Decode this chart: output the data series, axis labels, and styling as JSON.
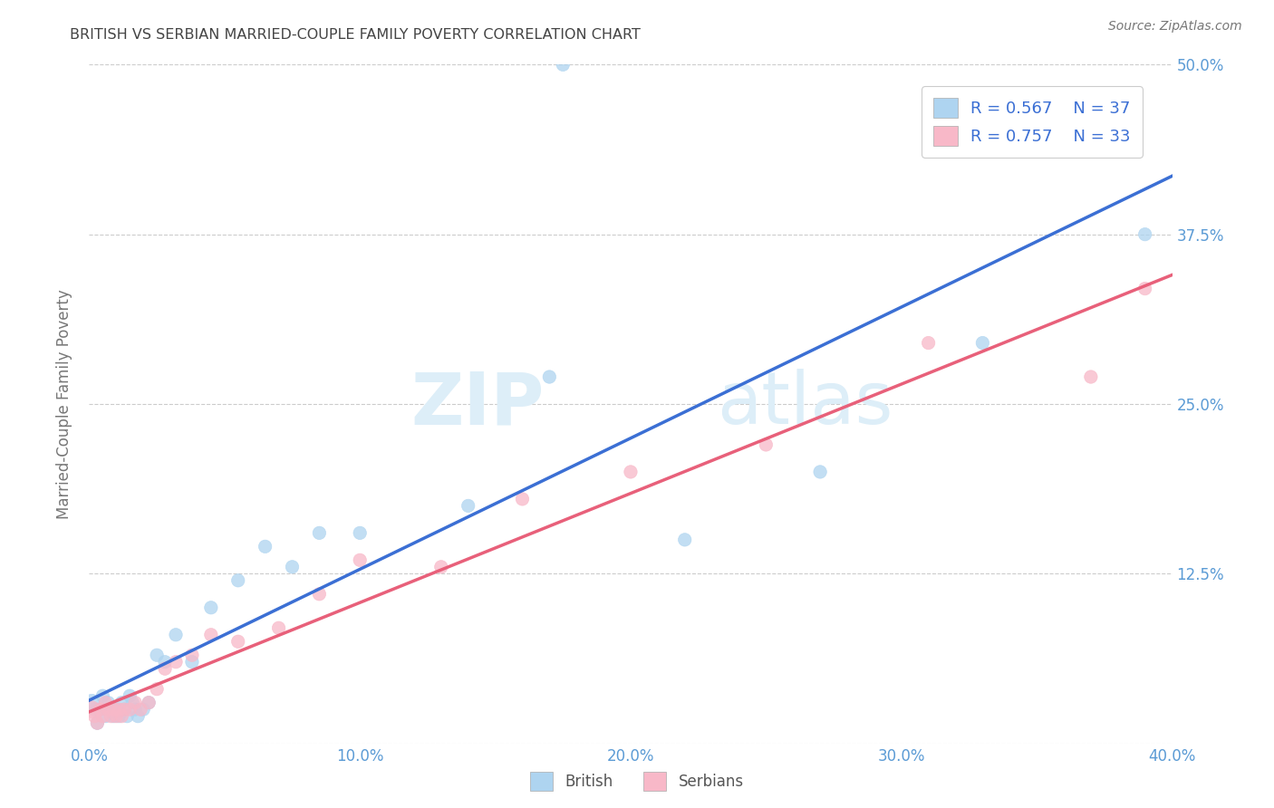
{
  "title": "BRITISH VS SERBIAN MARRIED-COUPLE FAMILY POVERTY CORRELATION CHART",
  "source": "Source: ZipAtlas.com",
  "ylabel": "Married-Couple Family Poverty",
  "xlim": [
    0.0,
    0.4
  ],
  "ylim": [
    0.0,
    0.5
  ],
  "xticks": [
    0.0,
    0.1,
    0.2,
    0.3,
    0.4
  ],
  "xtick_labels": [
    "0.0%",
    "10.0%",
    "20.0%",
    "30.0%",
    "40.0%"
  ],
  "yticks": [
    0.0,
    0.125,
    0.25,
    0.375,
    0.5
  ],
  "ytick_labels": [
    "",
    "12.5%",
    "25.0%",
    "37.5%",
    "50.0%"
  ],
  "british_R": 0.567,
  "british_N": 37,
  "serbian_R": 0.757,
  "serbian_N": 33,
  "british_color": "#aed4f0",
  "serbian_color": "#f8b8c8",
  "british_edge_color": "#6baed6",
  "serbian_edge_color": "#e87090",
  "british_line_color": "#3b6fd4",
  "serbian_line_color": "#e8607a",
  "background_color": "#ffffff",
  "grid_color": "#cccccc",
  "title_color": "#444444",
  "axis_label_color": "#777777",
  "tick_label_color": "#5b9bd5",
  "legend_text_color": "#3b6fd4",
  "watermark_color": "#ddeef8",
  "british_x": [
    0.001,
    0.002,
    0.003,
    0.004,
    0.005,
    0.006,
    0.007,
    0.008,
    0.009,
    0.01,
    0.011,
    0.012,
    0.013,
    0.014,
    0.015,
    0.016,
    0.017,
    0.018,
    0.02,
    0.022,
    0.025,
    0.028,
    0.032,
    0.038,
    0.045,
    0.055,
    0.065,
    0.075,
    0.085,
    0.1,
    0.14,
    0.17,
    0.22,
    0.27,
    0.33,
    0.39,
    0.175
  ],
  "british_y": [
    0.03,
    0.025,
    0.015,
    0.025,
    0.035,
    0.02,
    0.03,
    0.025,
    0.02,
    0.025,
    0.02,
    0.03,
    0.025,
    0.02,
    0.035,
    0.03,
    0.025,
    0.02,
    0.025,
    0.03,
    0.065,
    0.06,
    0.08,
    0.06,
    0.1,
    0.12,
    0.145,
    0.13,
    0.155,
    0.155,
    0.175,
    0.27,
    0.15,
    0.2,
    0.295,
    0.375,
    0.5
  ],
  "british_sizes": [
    100,
    60,
    60,
    60,
    60,
    60,
    60,
    60,
    60,
    60,
    60,
    60,
    60,
    60,
    60,
    60,
    60,
    60,
    60,
    60,
    60,
    60,
    60,
    60,
    60,
    60,
    60,
    60,
    60,
    60,
    60,
    60,
    60,
    60,
    60,
    60,
    60
  ],
  "serbian_x": [
    0.001,
    0.002,
    0.003,
    0.004,
    0.005,
    0.006,
    0.007,
    0.008,
    0.009,
    0.01,
    0.011,
    0.012,
    0.013,
    0.015,
    0.017,
    0.019,
    0.022,
    0.025,
    0.028,
    0.032,
    0.038,
    0.045,
    0.055,
    0.07,
    0.085,
    0.1,
    0.13,
    0.16,
    0.2,
    0.25,
    0.31,
    0.37,
    0.39
  ],
  "serbian_y": [
    0.025,
    0.02,
    0.015,
    0.025,
    0.02,
    0.03,
    0.025,
    0.02,
    0.025,
    0.02,
    0.025,
    0.02,
    0.025,
    0.025,
    0.03,
    0.025,
    0.03,
    0.04,
    0.055,
    0.06,
    0.065,
    0.08,
    0.075,
    0.085,
    0.11,
    0.135,
    0.13,
    0.18,
    0.2,
    0.22,
    0.295,
    0.27,
    0.335
  ],
  "serbian_sizes": [
    100,
    60,
    60,
    60,
    60,
    60,
    60,
    60,
    60,
    60,
    60,
    60,
    60,
    60,
    60,
    60,
    60,
    60,
    60,
    60,
    60,
    60,
    60,
    60,
    60,
    60,
    60,
    60,
    60,
    60,
    60,
    60,
    60
  ]
}
